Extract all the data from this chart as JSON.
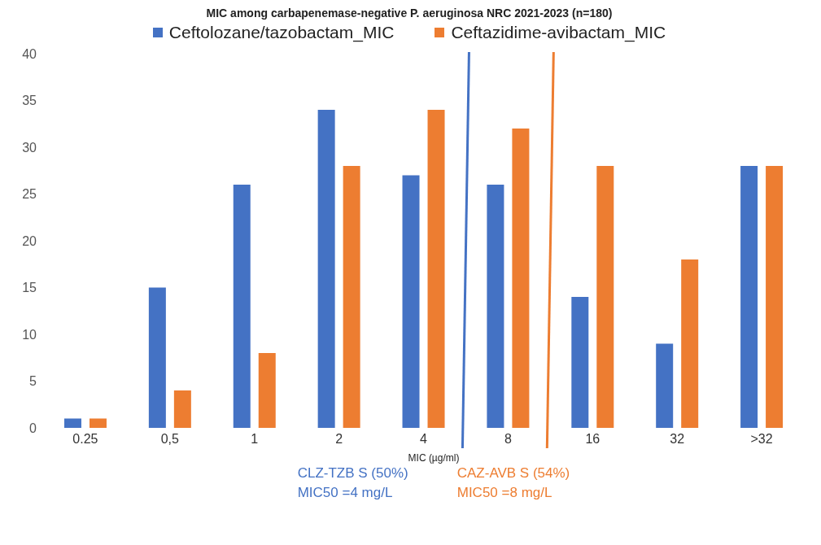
{
  "chart_data": {
    "type": "bar",
    "title": "MIC among carbapenemase-negative P. aeruginosa NRC 2021-2023 (n=180)",
    "xlabel": "MIC (µg/ml)",
    "categories": [
      "0.25",
      "0,5",
      "1",
      "2",
      "4",
      "8",
      "16",
      "32",
      ">32"
    ],
    "series": [
      {
        "name": "Ceftolozane/tazobactam_MIC",
        "color": "#4472c4",
        "values": [
          1,
          15,
          26,
          34,
          27,
          26,
          14,
          9,
          28
        ]
      },
      {
        "name": "Ceftazidime-avibactam_MIC",
        "color": "#ed7d31",
        "values": [
          1,
          4,
          8,
          28,
          34,
          32,
          28,
          18,
          28
        ]
      }
    ],
    "ylim": [
      0,
      40
    ],
    "yticks": [
      0,
      5,
      10,
      15,
      20,
      25,
      30,
      35,
      40
    ],
    "grid": false,
    "legend": "top",
    "annotations": [
      "CLZ-TZB S (50%)",
      "MIC50 =4 mg/L",
      "CAZ-AVB S (54%)",
      "MIC50 =8 mg/L"
    ]
  }
}
